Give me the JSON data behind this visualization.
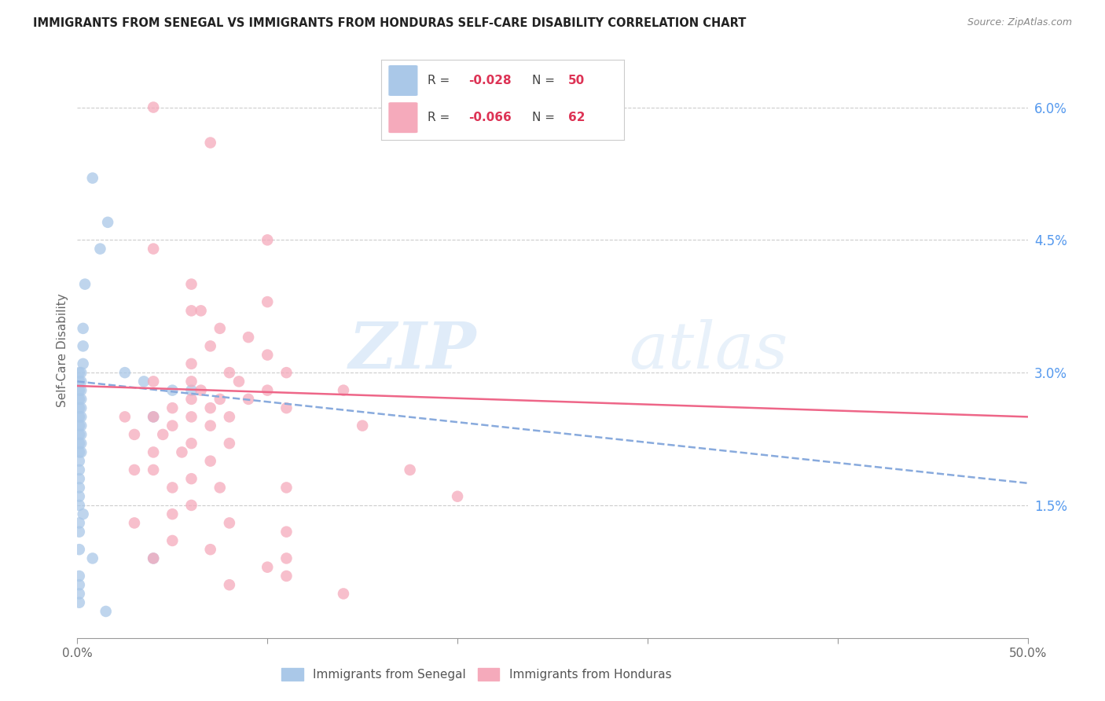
{
  "title": "IMMIGRANTS FROM SENEGAL VS IMMIGRANTS FROM HONDURAS SELF-CARE DISABILITY CORRELATION CHART",
  "source": "Source: ZipAtlas.com",
  "ylabel": "Self-Care Disability",
  "xlim": [
    0.0,
    0.5
  ],
  "ylim": [
    0.0,
    0.065
  ],
  "grid_color": "#cccccc",
  "background_color": "#ffffff",
  "senegal_color": "#aac8e8",
  "honduras_color": "#f5aabb",
  "senegal_line_color": "#88aadd",
  "honduras_line_color": "#ee6688",
  "right_tick_color": "#5599ee",
  "senegal_scatter": [
    [
      0.008,
      0.052
    ],
    [
      0.016,
      0.047
    ],
    [
      0.012,
      0.044
    ],
    [
      0.004,
      0.04
    ],
    [
      0.003,
      0.035
    ],
    [
      0.003,
      0.033
    ],
    [
      0.003,
      0.031
    ],
    [
      0.002,
      0.03
    ],
    [
      0.002,
      0.029
    ],
    [
      0.002,
      0.028
    ],
    [
      0.002,
      0.027
    ],
    [
      0.002,
      0.026
    ],
    [
      0.002,
      0.025
    ],
    [
      0.002,
      0.024
    ],
    [
      0.002,
      0.023
    ],
    [
      0.002,
      0.022
    ],
    [
      0.002,
      0.021
    ],
    [
      0.001,
      0.03
    ],
    [
      0.001,
      0.029
    ],
    [
      0.001,
      0.028
    ],
    [
      0.001,
      0.027
    ],
    [
      0.001,
      0.026
    ],
    [
      0.001,
      0.025
    ],
    [
      0.001,
      0.024
    ],
    [
      0.001,
      0.023
    ],
    [
      0.001,
      0.022
    ],
    [
      0.001,
      0.021
    ],
    [
      0.001,
      0.02
    ],
    [
      0.001,
      0.019
    ],
    [
      0.001,
      0.018
    ],
    [
      0.001,
      0.017
    ],
    [
      0.001,
      0.016
    ],
    [
      0.001,
      0.015
    ],
    [
      0.025,
      0.03
    ],
    [
      0.035,
      0.029
    ],
    [
      0.05,
      0.028
    ],
    [
      0.06,
      0.028
    ],
    [
      0.04,
      0.025
    ],
    [
      0.003,
      0.014
    ],
    [
      0.001,
      0.013
    ],
    [
      0.001,
      0.012
    ],
    [
      0.001,
      0.01
    ],
    [
      0.008,
      0.009
    ],
    [
      0.04,
      0.009
    ],
    [
      0.001,
      0.007
    ],
    [
      0.001,
      0.006
    ],
    [
      0.001,
      0.005
    ],
    [
      0.001,
      0.004
    ],
    [
      0.015,
      0.003
    ]
  ],
  "honduras_scatter": [
    [
      0.04,
      0.06
    ],
    [
      0.07,
      0.056
    ],
    [
      0.04,
      0.044
    ],
    [
      0.1,
      0.045
    ],
    [
      0.06,
      0.04
    ],
    [
      0.1,
      0.038
    ],
    [
      0.06,
      0.037
    ],
    [
      0.065,
      0.037
    ],
    [
      0.075,
      0.035
    ],
    [
      0.09,
      0.034
    ],
    [
      0.07,
      0.033
    ],
    [
      0.1,
      0.032
    ],
    [
      0.06,
      0.031
    ],
    [
      0.08,
      0.03
    ],
    [
      0.11,
      0.03
    ],
    [
      0.04,
      0.029
    ],
    [
      0.06,
      0.029
    ],
    [
      0.085,
      0.029
    ],
    [
      0.065,
      0.028
    ],
    [
      0.1,
      0.028
    ],
    [
      0.06,
      0.027
    ],
    [
      0.075,
      0.027
    ],
    [
      0.09,
      0.027
    ],
    [
      0.05,
      0.026
    ],
    [
      0.07,
      0.026
    ],
    [
      0.11,
      0.026
    ],
    [
      0.025,
      0.025
    ],
    [
      0.04,
      0.025
    ],
    [
      0.06,
      0.025
    ],
    [
      0.08,
      0.025
    ],
    [
      0.05,
      0.024
    ],
    [
      0.07,
      0.024
    ],
    [
      0.03,
      0.023
    ],
    [
      0.045,
      0.023
    ],
    [
      0.06,
      0.022
    ],
    [
      0.08,
      0.022
    ],
    [
      0.04,
      0.021
    ],
    [
      0.055,
      0.021
    ],
    [
      0.07,
      0.02
    ],
    [
      0.04,
      0.019
    ],
    [
      0.03,
      0.019
    ],
    [
      0.06,
      0.018
    ],
    [
      0.175,
      0.019
    ],
    [
      0.05,
      0.017
    ],
    [
      0.075,
      0.017
    ],
    [
      0.11,
      0.017
    ],
    [
      0.06,
      0.015
    ],
    [
      0.05,
      0.014
    ],
    [
      0.03,
      0.013
    ],
    [
      0.08,
      0.013
    ],
    [
      0.11,
      0.012
    ],
    [
      0.05,
      0.011
    ],
    [
      0.07,
      0.01
    ],
    [
      0.04,
      0.009
    ],
    [
      0.11,
      0.009
    ],
    [
      0.2,
      0.016
    ],
    [
      0.14,
      0.028
    ],
    [
      0.15,
      0.024
    ],
    [
      0.1,
      0.008
    ],
    [
      0.11,
      0.007
    ],
    [
      0.08,
      0.006
    ],
    [
      0.14,
      0.005
    ]
  ],
  "senegal_line": {
    "x0": 0.0,
    "y0": 0.029,
    "x1": 0.5,
    "y1": 0.0175
  },
  "honduras_line": {
    "x0": 0.0,
    "y0": 0.0285,
    "x1": 0.5,
    "y1": 0.025
  }
}
